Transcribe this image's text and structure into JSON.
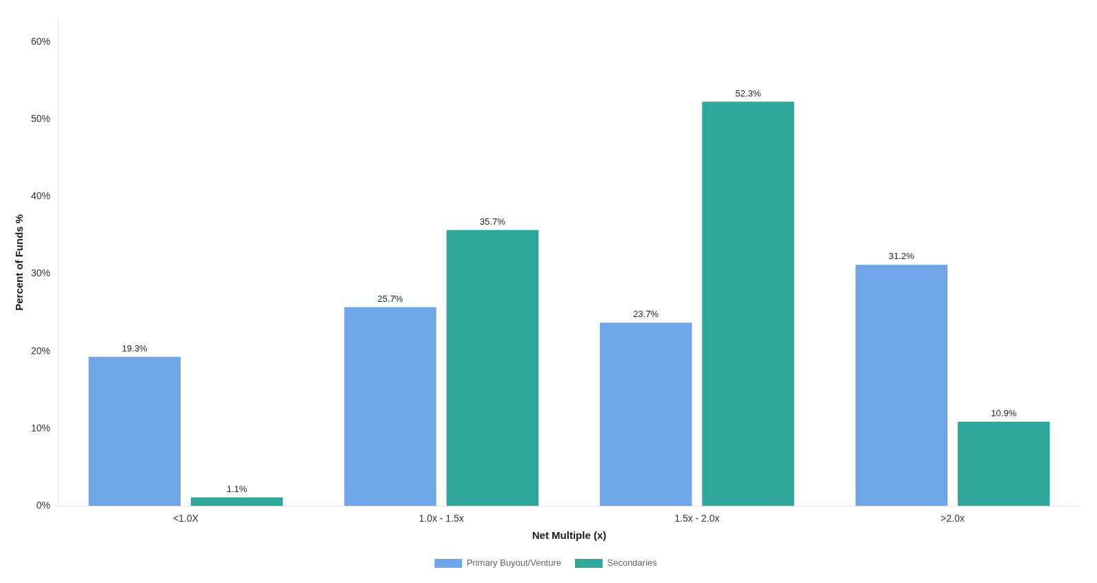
{
  "chart_data": {
    "type": "bar",
    "categories": [
      "<1.0X",
      "1.0x - 1.5x",
      "1.5x - 2.0x",
      ">2.0x"
    ],
    "series": [
      {
        "name": "Primary Buyout/Venture",
        "color": "#6EA6E8",
        "values": [
          19.3,
          25.7,
          23.7,
          31.2
        ],
        "value_labels": [
          "19.3%",
          "25.7%",
          "23.7%",
          "31.2%"
        ]
      },
      {
        "name": "Secondaries",
        "color": "#2DA89A",
        "values": [
          1.1,
          35.7,
          52.3,
          10.9
        ],
        "value_labels": [
          "1.1%",
          "35.7%",
          "52.3%",
          "10.9%"
        ]
      }
    ],
    "xlabel": "Net Multiple (x)",
    "ylabel": "Percent of Funds %",
    "ylim": [
      0,
      63
    ],
    "yticks": [
      {
        "value": 0,
        "label": "0%"
      },
      {
        "value": 10,
        "label": "10%"
      },
      {
        "value": 20,
        "label": "20%"
      },
      {
        "value": 30,
        "label": "30%"
      },
      {
        "value": 40,
        "label": "40%"
      },
      {
        "value": 50,
        "label": "50%"
      },
      {
        "value": 60,
        "label": "60%"
      }
    ],
    "grid": false,
    "legend": "bottom",
    "data_labels": true
  }
}
